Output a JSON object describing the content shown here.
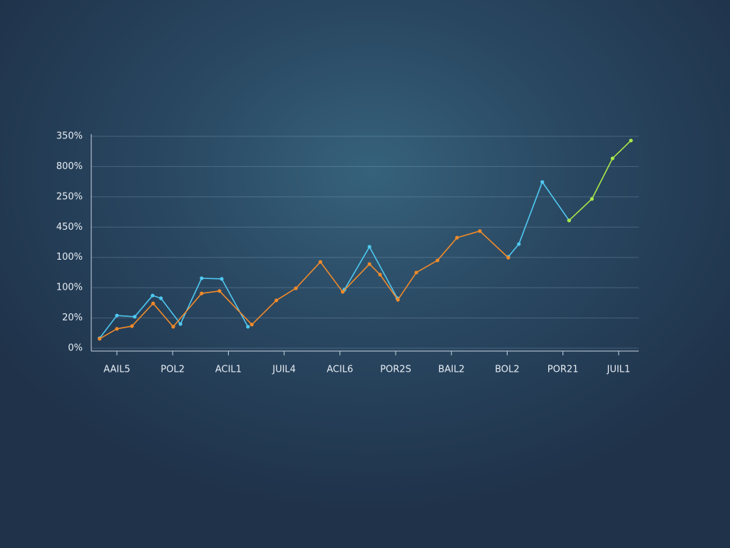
{
  "chart_data": {
    "type": "line",
    "xlim": [
      -0.46,
      9.36
    ],
    "xticks": [
      {
        "value": 0,
        "label": "AAIL5"
      },
      {
        "value": 1,
        "label": "POL2"
      },
      {
        "value": 2,
        "label": "ACIL1"
      },
      {
        "value": 3,
        "label": "JUIL4"
      },
      {
        "value": 4,
        "label": "ACIL6"
      },
      {
        "value": 5,
        "label": "POR2S"
      },
      {
        "value": 6,
        "label": "BAIL2"
      },
      {
        "value": 7,
        "label": "BOL2"
      },
      {
        "value": 8,
        "label": "POR21"
      },
      {
        "value": 9,
        "label": "JUIL1"
      }
    ],
    "ylim": [
      0,
      7
    ],
    "yticks": [
      {
        "value": 0,
        "label": "0%"
      },
      {
        "value": 1,
        "label": "20%"
      },
      {
        "value": 2,
        "label": "100%"
      },
      {
        "value": 3,
        "label": "100%"
      },
      {
        "value": 4,
        "label": "450%"
      },
      {
        "value": 5,
        "label": "250%"
      },
      {
        "value": 6,
        "label": "800%"
      },
      {
        "value": 7,
        "label": "350%"
      }
    ],
    "grid": true,
    "series": [
      {
        "color": "#4fc8f0",
        "x": [
          -0.31,
          0,
          0.32,
          0.64,
          0.79,
          1.14,
          1.52,
          1.88,
          2.35,
          2.6,
          4.08,
          4.53,
          5.03,
          6,
          7.02,
          7.21,
          7.63,
          8.11
        ],
        "values": [
          0.33,
          1.08,
          1.04,
          1.74,
          1.65,
          0.8,
          2.31,
          2.29,
          0.71,
          null,
          1.93,
          3.35,
          1.65,
          null,
          3.02,
          3.44,
          5.49,
          4.22
        ]
      },
      {
        "color": "#a8e84a",
        "x": [
          8.11,
          8.52,
          8.89,
          9.22
        ],
        "values": [
          4.22,
          4.93,
          6.27,
          6.86
        ]
      },
      {
        "color": "#f08a2a",
        "x": [
          -0.31,
          0,
          0.27,
          0.65,
          1.01,
          1.52,
          1.84,
          2.42,
          2.86,
          3.21,
          3.65,
          4.05,
          4.53,
          4.72,
          5.04,
          5.37,
          5.75,
          6.1,
          6.51,
          7.02
        ],
        "values": [
          0.31,
          0.64,
          0.73,
          1.48,
          0.71,
          1.81,
          1.89,
          0.78,
          1.58,
          1.98,
          2.85,
          1.86,
          2.78,
          2.43,
          1.6,
          2.5,
          2.9,
          3.65,
          3.87,
          2.99
        ]
      }
    ]
  }
}
